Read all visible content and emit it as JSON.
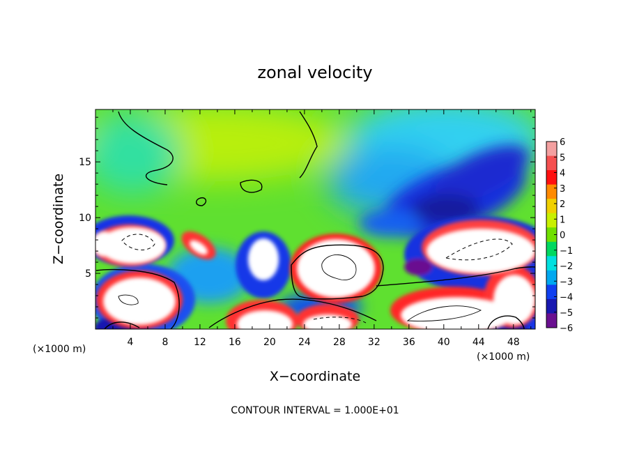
{
  "chart_data": {
    "type": "heatmap",
    "title": "zonal velocity",
    "xlabel": "X−coordinate",
    "ylabel": "Z−coordinate",
    "x_unit_left": "(×1000 m)",
    "x_unit_right": "(×1000 m)",
    "footer": "CONTOUR INTERVAL = 1.000E+01",
    "xlim": [
      0,
      50.5
    ],
    "ylim": [
      0,
      19.7
    ],
    "x_ticks": [
      4,
      8,
      12,
      16,
      20,
      24,
      28,
      32,
      36,
      40,
      44,
      48
    ],
    "y_ticks": [
      5,
      10,
      15
    ],
    "colorbar": {
      "range": [
        -6,
        6
      ],
      "ticks": [
        "6",
        "5",
        "4",
        "3",
        "2",
        "1",
        "0",
        "−1",
        "−2",
        "−3",
        "−4",
        "−5",
        "−6"
      ],
      "colors": [
        "#f3a0a0",
        "#f55050",
        "#ff1010",
        "#ff8a00",
        "#f0d000",
        "#c8f000",
        "#70e000",
        "#00d860",
        "#00e0e0",
        "#00a8f0",
        "#1040f0",
        "#1818b0",
        "#6a1090"
      ]
    },
    "saturated_above_color": "#ffffff",
    "features": [
      {
        "kind": "white-core",
        "x": 1.8,
        "z": 8.3,
        "value_min": 6
      },
      {
        "kind": "white-core",
        "x": 27.6,
        "z": 5.8,
        "value_min": 6
      },
      {
        "kind": "white-core",
        "x": 5.5,
        "z": 2.5,
        "value_min": 6
      },
      {
        "kind": "white-core",
        "x": 47.5,
        "z": 2.3,
        "value_min": 6
      },
      {
        "kind": "white-core",
        "x": 43.5,
        "z": 8.2,
        "value_min": 6
      },
      {
        "kind": "white-core",
        "x": 18.5,
        "z": 5.8,
        "value_min": 6
      },
      {
        "kind": "white-core",
        "x": 25.0,
        "z": 0.7,
        "value_min": 6
      },
      {
        "kind": "blue-max",
        "x": 41.5,
        "z": 11.5,
        "value": -6
      },
      {
        "kind": "blue-max",
        "x": 37.0,
        "z": 13.0,
        "value": -4
      }
    ]
  }
}
